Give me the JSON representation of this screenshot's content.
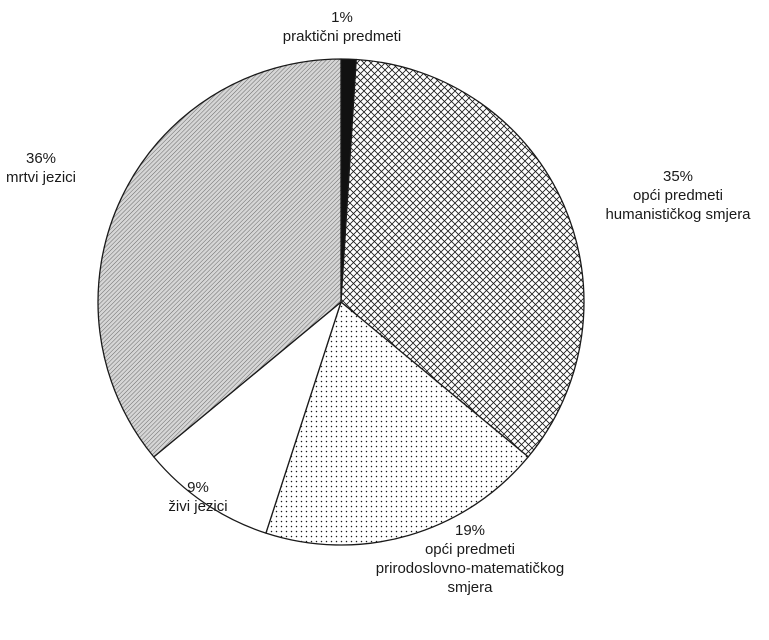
{
  "chart_data": {
    "type": "pie",
    "title": "",
    "slices": [
      {
        "value": 1,
        "percent_label": "1%",
        "label_lines": [
          "praktični predmeti"
        ],
        "pattern": "solid-black"
      },
      {
        "value": 35,
        "percent_label": "35%",
        "label_lines": [
          "opći predmeti",
          "humanističkog smjera"
        ],
        "pattern": "crosshatch"
      },
      {
        "value": 19,
        "percent_label": "19%",
        "label_lines": [
          "opći predmeti",
          "prirodoslovno-matematičkog",
          "smjera"
        ],
        "pattern": "dots"
      },
      {
        "value": 9,
        "percent_label": "9%",
        "label_lines": [
          "živi jezici"
        ],
        "pattern": "white"
      },
      {
        "value": 36,
        "percent_label": "36%",
        "label_lines": [
          "mrtvi jezici"
        ],
        "pattern": "diagonal-lines"
      }
    ],
    "start": "12 o'clock",
    "direction": "clockwise",
    "colors": {
      "stroke": "#1a1a1a",
      "text": "#1a1a1a",
      "background": "#ffffff"
    }
  }
}
